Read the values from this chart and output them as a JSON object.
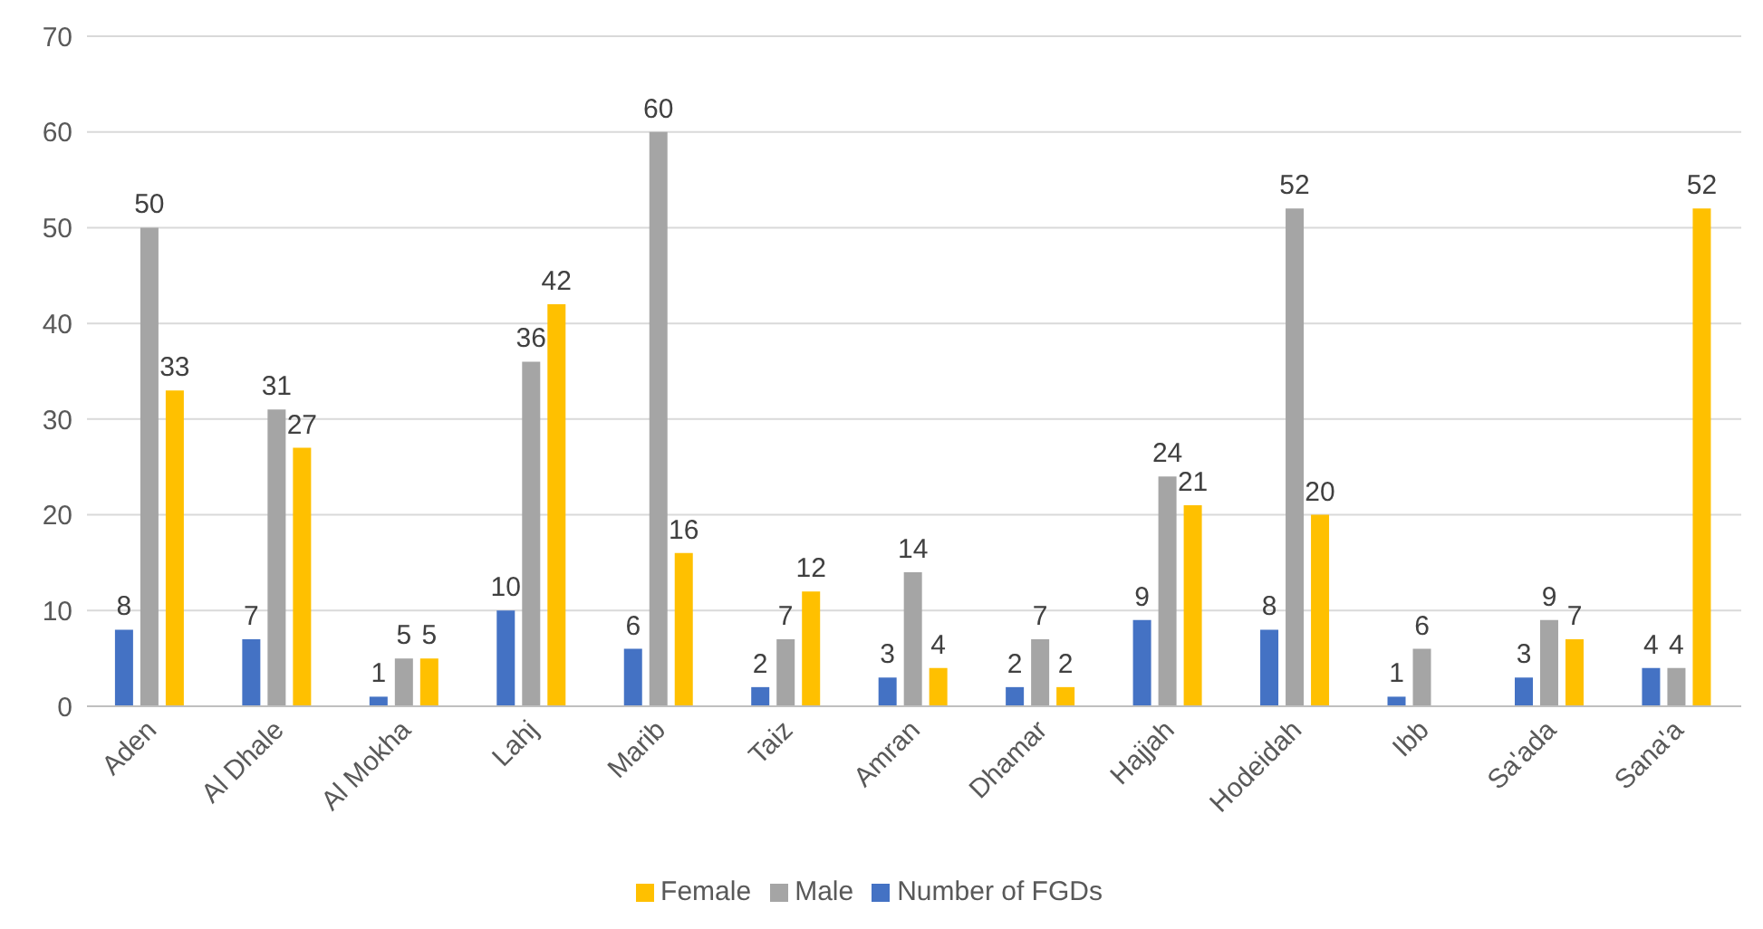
{
  "chart_data": {
    "type": "bar",
    "categories": [
      "Aden",
      "Al Dhale",
      "Al Mokha",
      "Lahj",
      "Marib",
      "Taiz",
      "Amran",
      "Dhamar",
      "Hajjah",
      "Hodeidah",
      "Ibb",
      "Sa'ada",
      "Sana'a"
    ],
    "series": [
      {
        "name": "Number of FGDs",
        "color": "#4472c4",
        "values": [
          8,
          7,
          1,
          10,
          6,
          2,
          3,
          2,
          9,
          8,
          1,
          3,
          4
        ]
      },
      {
        "name": "Male",
        "color": "#a5a5a5",
        "values": [
          50,
          31,
          5,
          36,
          60,
          7,
          14,
          7,
          24,
          52,
          6,
          9,
          4
        ]
      },
      {
        "name": "Female",
        "color": "#ffc000",
        "values": [
          33,
          27,
          5,
          42,
          16,
          12,
          4,
          2,
          21,
          20,
          null,
          7,
          52
        ]
      }
    ],
    "ylim": [
      0,
      70
    ],
    "yticks": [
      0,
      10,
      20,
      30,
      40,
      50,
      60,
      70
    ],
    "grid": "y",
    "legend": "bottom",
    "data_labels": true
  }
}
